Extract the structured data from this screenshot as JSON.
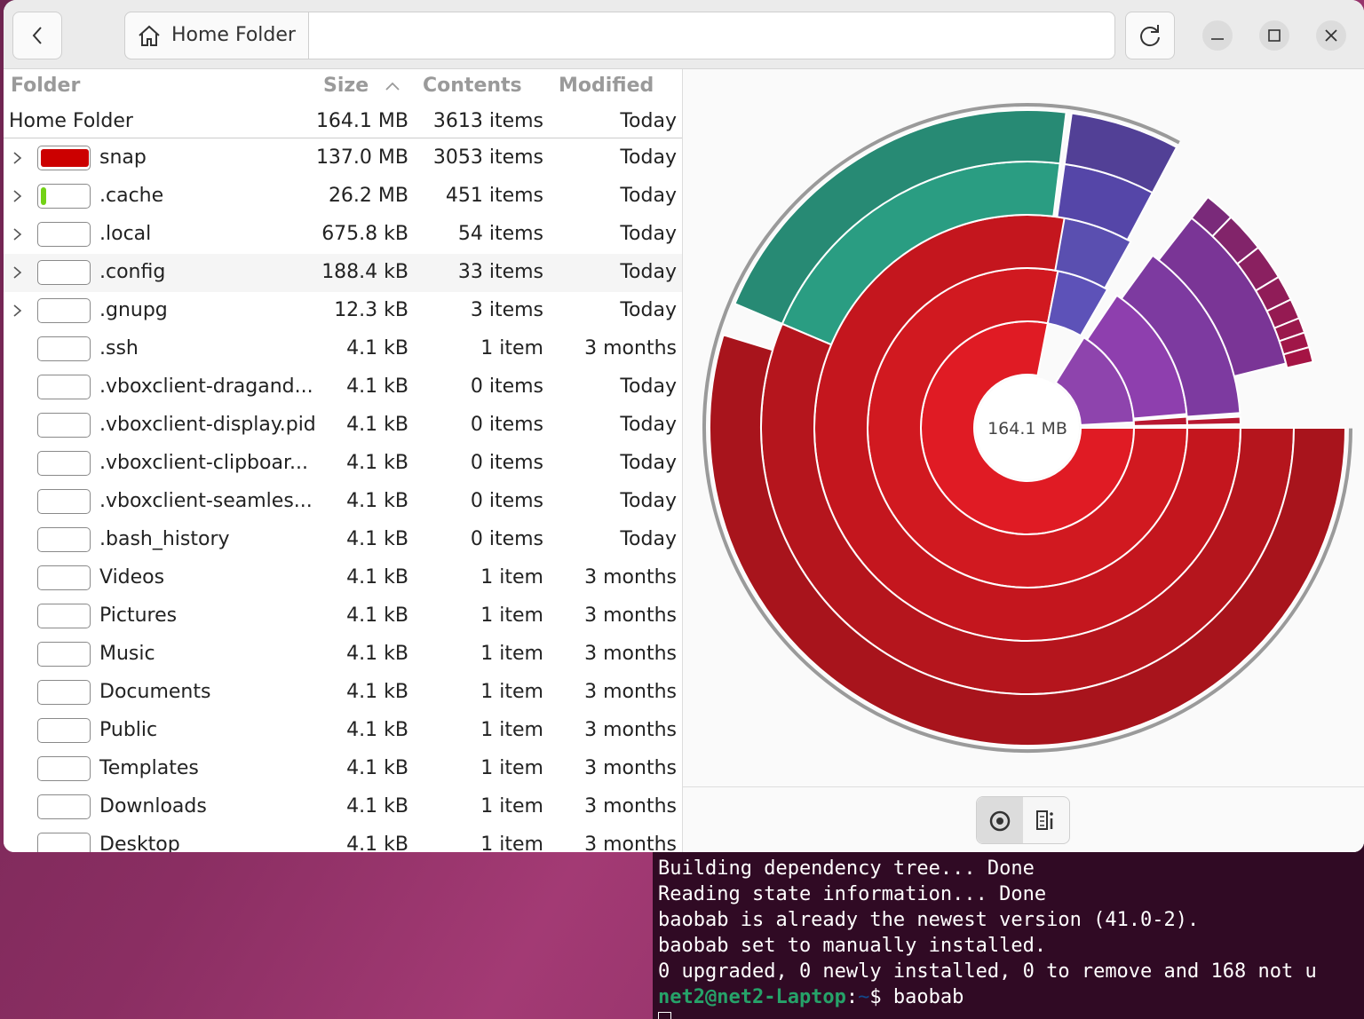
{
  "header": {
    "location": "Home Folder"
  },
  "table": {
    "columns": [
      "Folder",
      "Size",
      "Contents",
      "Modified"
    ],
    "total": {
      "name": "Home Folder",
      "size": "164.1 MB",
      "contents": "3613 items",
      "modified": "Today"
    },
    "rows": [
      {
        "name": "snap",
        "size": "137.0 MB",
        "contents": "3053 items",
        "modified": "Today",
        "expandable": true
      },
      {
        "name": ".cache",
        "size": "26.2 MB",
        "contents": "451 items",
        "modified": "Today",
        "expandable": true
      },
      {
        "name": ".local",
        "size": "675.8 kB",
        "contents": "54 items",
        "modified": "Today",
        "expandable": true
      },
      {
        "name": ".config",
        "size": "188.4 kB",
        "contents": "33 items",
        "modified": "Today",
        "expandable": true
      },
      {
        "name": ".gnupg",
        "size": "12.3 kB",
        "contents": "3 items",
        "modified": "Today",
        "expandable": true
      },
      {
        "name": ".ssh",
        "size": "4.1 kB",
        "contents": "1 item",
        "modified": "3 months",
        "expandable": false
      },
      {
        "name": ".vboxclient-dragand...",
        "size": "4.1 kB",
        "contents": "0 items",
        "modified": "Today",
        "expandable": false
      },
      {
        "name": ".vboxclient-display.pid",
        "size": "4.1 kB",
        "contents": "0 items",
        "modified": "Today",
        "expandable": false
      },
      {
        "name": ".vboxclient-clipboar...",
        "size": "4.1 kB",
        "contents": "0 items",
        "modified": "Today",
        "expandable": false
      },
      {
        "name": ".vboxclient-seamles...",
        "size": "4.1 kB",
        "contents": "0 items",
        "modified": "Today",
        "expandable": false
      },
      {
        "name": ".bash_history",
        "size": "4.1 kB",
        "contents": "0 items",
        "modified": "Today",
        "expandable": false
      },
      {
        "name": "Videos",
        "size": "4.1 kB",
        "contents": "1 item",
        "modified": "3 months",
        "expandable": false
      },
      {
        "name": "Pictures",
        "size": "4.1 kB",
        "contents": "1 item",
        "modified": "3 months",
        "expandable": false
      },
      {
        "name": "Music",
        "size": "4.1 kB",
        "contents": "1 item",
        "modified": "3 months",
        "expandable": false
      },
      {
        "name": "Documents",
        "size": "4.1 kB",
        "contents": "1 item",
        "modified": "3 months",
        "expandable": false
      },
      {
        "name": "Public",
        "size": "4.1 kB",
        "contents": "1 item",
        "modified": "3 months",
        "expandable": false
      },
      {
        "name": "Templates",
        "size": "4.1 kB",
        "contents": "1 item",
        "modified": "3 months",
        "expandable": false
      },
      {
        "name": "Downloads",
        "size": "4.1 kB",
        "contents": "1 item",
        "modified": "3 months",
        "expandable": false
      },
      {
        "name": "Desktop",
        "size": "4.1 kB",
        "contents": "1 item",
        "modified": "3 months",
        "expandable": false
      }
    ]
  },
  "chart": {
    "center_label": "164.1 MB"
  },
  "terminal": {
    "lines": [
      "Building dependency tree... Done",
      "Reading state information... Done",
      "baobab is already the newest version (41.0-2).",
      "baobab set to manually installed.",
      "0 upgraded, 0 newly installed, 0 to remove and 168 not u"
    ],
    "prompt": {
      "user": "net2@net2-Laptop",
      "sep": ":",
      "path": "~",
      "command": "$ baobab"
    }
  }
}
